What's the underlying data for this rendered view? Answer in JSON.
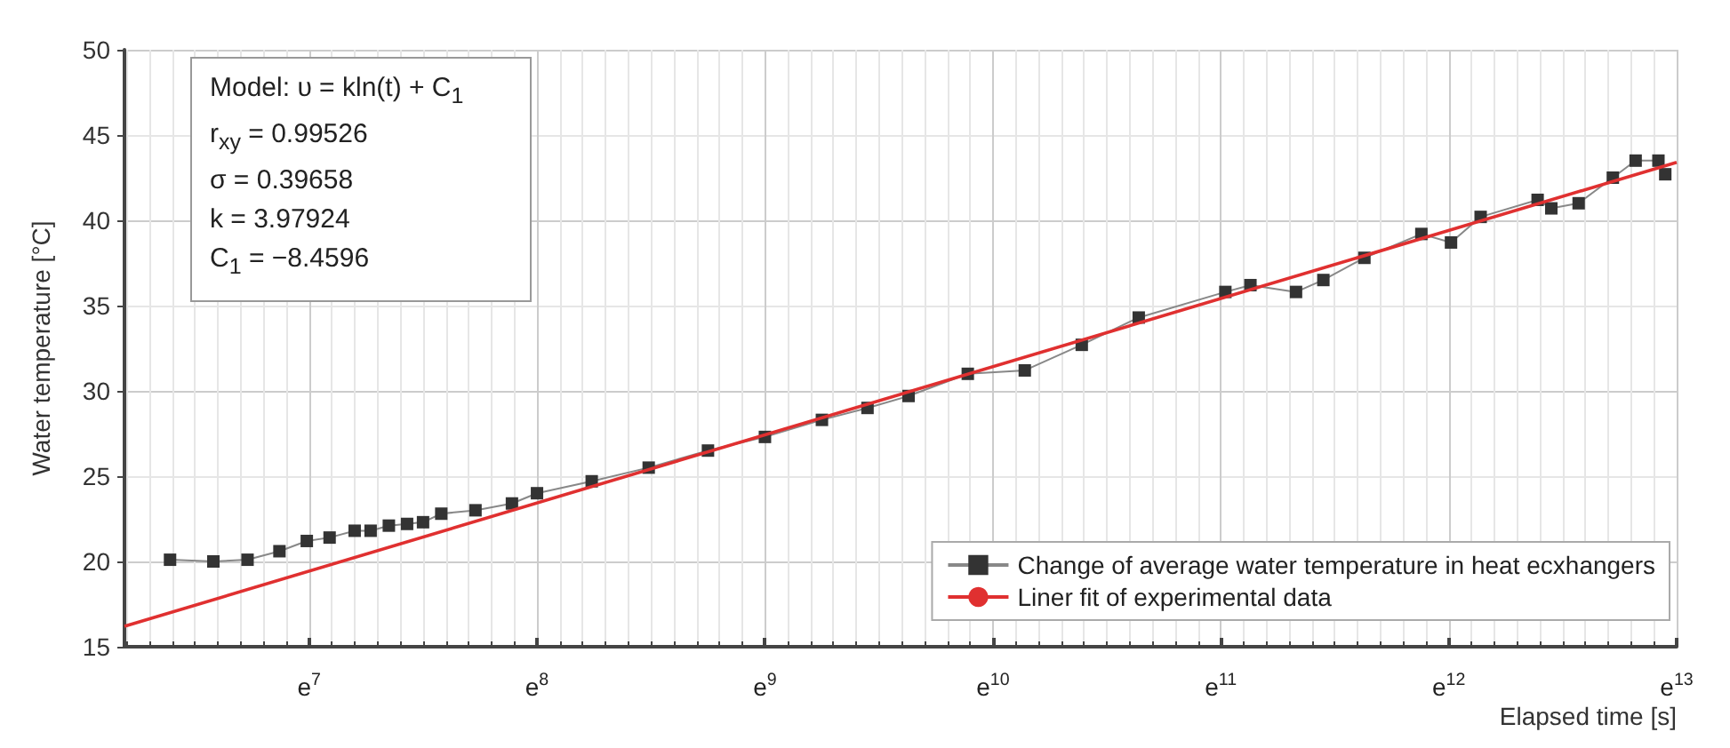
{
  "chart_data": {
    "type": "line",
    "xlabel": "Elapsed time [s]",
    "ylabel": "Water temperature [°C]",
    "xlim": [
      6.19,
      13.0
    ],
    "ylim": [
      15,
      50
    ],
    "xticks": [
      {
        "value": 7,
        "label": "e$^{7}$"
      },
      {
        "value": 8,
        "label": "e$^{8}$"
      },
      {
        "value": 9,
        "label": "e$^{9}$"
      },
      {
        "value": 10,
        "label": "e$^{10}$"
      },
      {
        "value": 11,
        "label": "e$^{11}$"
      },
      {
        "value": 12,
        "label": "e$^{12}$"
      },
      {
        "value": 13,
        "label": "e$^{13}$"
      }
    ],
    "yticks": [
      15,
      20,
      25,
      30,
      35,
      40,
      45,
      50
    ],
    "grid": true,
    "legend": "bottom right",
    "annotations": [
      "Model: υ = kln(t) + C$_{1}$",
      "r$_{xy}$ = 0.99526",
      "σ = 0.39658",
      "k = 3.97924",
      "C$_{1}$ = −8.4596"
    ],
    "series": [
      {
        "name": "Change of average water temperature in heat ecxhangers",
        "color": "#333333",
        "marker": "square",
        "x": [
          6.39,
          6.58,
          6.73,
          6.87,
          6.99,
          7.09,
          7.2,
          7.27,
          7.35,
          7.43,
          7.5,
          7.58,
          7.73,
          7.89,
          8.0,
          8.24,
          8.49,
          8.75,
          9.0,
          9.25,
          9.45,
          9.63,
          9.89,
          10.14,
          10.39,
          10.64,
          11.02,
          11.13,
          11.33,
          11.45,
          11.63,
          11.88,
          12.01,
          12.14,
          12.39,
          12.45,
          12.57,
          12.72,
          12.82,
          12.92,
          12.95
        ],
        "values": [
          20.1,
          20.0,
          20.1,
          20.6,
          21.2,
          21.4,
          21.8,
          21.8,
          22.1,
          22.2,
          22.3,
          22.8,
          23.0,
          23.4,
          24.0,
          24.7,
          25.5,
          26.5,
          27.3,
          28.3,
          29.0,
          29.7,
          31.0,
          31.2,
          32.7,
          34.3,
          35.8,
          36.2,
          35.8,
          36.5,
          37.8,
          39.2,
          38.7,
          40.2,
          41.2,
          40.7,
          41.0,
          42.5,
          43.5,
          43.5,
          42.7
        ]
      },
      {
        "name": "Liner fit of experimental data",
        "color": "#e03030",
        "marker": "none",
        "x": [
          6.19,
          13.0
        ],
        "values": [
          16.2,
          43.4
        ]
      }
    ]
  }
}
